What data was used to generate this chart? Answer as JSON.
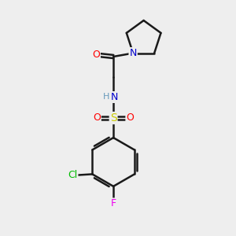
{
  "background_color": "#eeeeee",
  "bond_color": "#1a1a1a",
  "atom_colors": {
    "O": "#ff0000",
    "N": "#0000cc",
    "S": "#cccc00",
    "Cl": "#00bb00",
    "F": "#ee00ee",
    "H": "#6699bb",
    "C": "#1a1a1a"
  },
  "font_size": 9,
  "fig_size": [
    3.0,
    3.0
  ],
  "dpi": 100
}
